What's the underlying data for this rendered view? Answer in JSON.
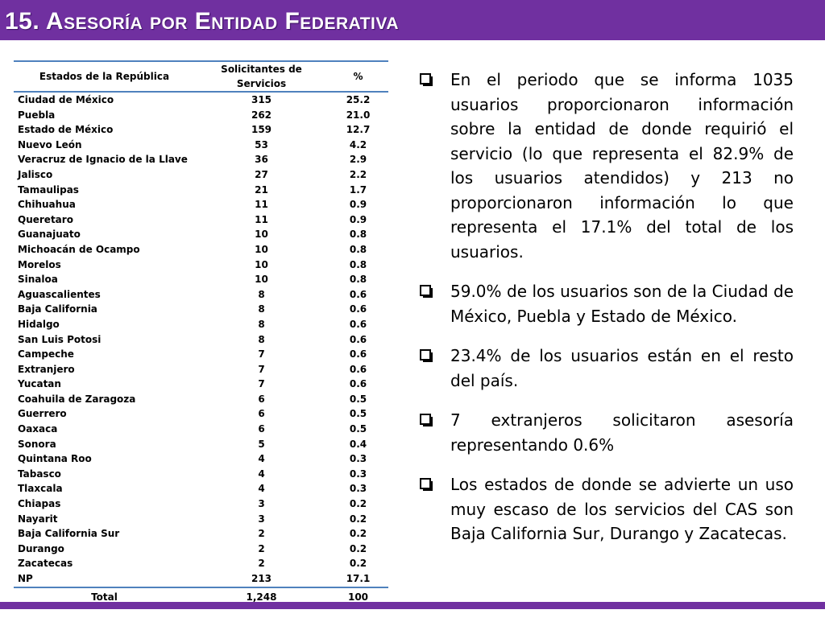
{
  "header": {
    "title": "15. Asesoría por Entidad Federativa"
  },
  "colors": {
    "header": "#7030a0",
    "footer": "#7030a0",
    "table_rule": "#4f81bd"
  },
  "table": {
    "columns": [
      "Estados de la República",
      "Solicitantes de Servicios",
      "%"
    ],
    "rows": [
      [
        "Ciudad de México",
        "315",
        "25.2"
      ],
      [
        "Puebla",
        "262",
        "21.0"
      ],
      [
        "Estado de México",
        "159",
        "12.7"
      ],
      [
        "Nuevo León",
        "53",
        "4.2"
      ],
      [
        "Veracruz de Ignacio de la Llave",
        "36",
        "2.9"
      ],
      [
        "Jalisco",
        "27",
        "2.2"
      ],
      [
        "Tamaulipas",
        "21",
        "1.7"
      ],
      [
        "Chihuahua",
        "11",
        "0.9"
      ],
      [
        "Queretaro",
        "11",
        "0.9"
      ],
      [
        "Guanajuato",
        "10",
        "0.8"
      ],
      [
        "Michoacán de Ocampo",
        "10",
        "0.8"
      ],
      [
        "Morelos",
        "10",
        "0.8"
      ],
      [
        "Sinaloa",
        "10",
        "0.8"
      ],
      [
        "Aguascalientes",
        "8",
        "0.6"
      ],
      [
        "Baja California",
        "8",
        "0.6"
      ],
      [
        "Hidalgo",
        "8",
        "0.6"
      ],
      [
        "San Luis Potosi",
        "8",
        "0.6"
      ],
      [
        "Campeche",
        "7",
        "0.6"
      ],
      [
        "Extranjero",
        "7",
        "0.6"
      ],
      [
        "Yucatan",
        "7",
        "0.6"
      ],
      [
        "Coahuila de Zaragoza",
        "6",
        "0.5"
      ],
      [
        "Guerrero",
        "6",
        "0.5"
      ],
      [
        "Oaxaca",
        "6",
        "0.5"
      ],
      [
        "Sonora",
        "5",
        "0.4"
      ],
      [
        "Quintana Roo",
        "4",
        "0.3"
      ],
      [
        "Tabasco",
        "4",
        "0.3"
      ],
      [
        "Tlaxcala",
        "4",
        "0.3"
      ],
      [
        "Chiapas",
        "3",
        "0.2"
      ],
      [
        "Nayarit",
        "3",
        "0.2"
      ],
      [
        "Baja California Sur",
        "2",
        "0.2"
      ],
      [
        "Durango",
        "2",
        "0.2"
      ],
      [
        "Zacatecas",
        "2",
        "0.2"
      ],
      [
        "NP",
        "213",
        "17.1"
      ]
    ],
    "total": [
      "Total",
      "1,248",
      "100"
    ]
  },
  "bullets": [
    {
      "icon": "checkbox-bullet-icon",
      "text": "En el periodo que se informa 1035 usuarios proporcionaron información sobre la entidad de donde requirió el servicio (lo que representa el 82.9% de los usuarios atendidos) y 213 no proporcionaron información lo que representa el 17.1% del total de los usuarios."
    },
    {
      "icon": "checkbox-bullet-icon",
      "text": "59.0% de los usuarios son de la Ciudad de México,  Puebla  y Estado de México."
    },
    {
      "icon": "checkbox-bullet-icon",
      "text": "23.4% de los usuarios están en el resto del país."
    },
    {
      "icon": "checkbox-bullet-icon",
      "text": "7 extranjeros solicitaron asesoría representando 0.6%"
    },
    {
      "icon": "checkbox-bullet-icon",
      "text": "Los estados de donde se advierte un uso muy escaso de los servicios del CAS son Baja California Sur, Durango y Zacatecas."
    }
  ]
}
